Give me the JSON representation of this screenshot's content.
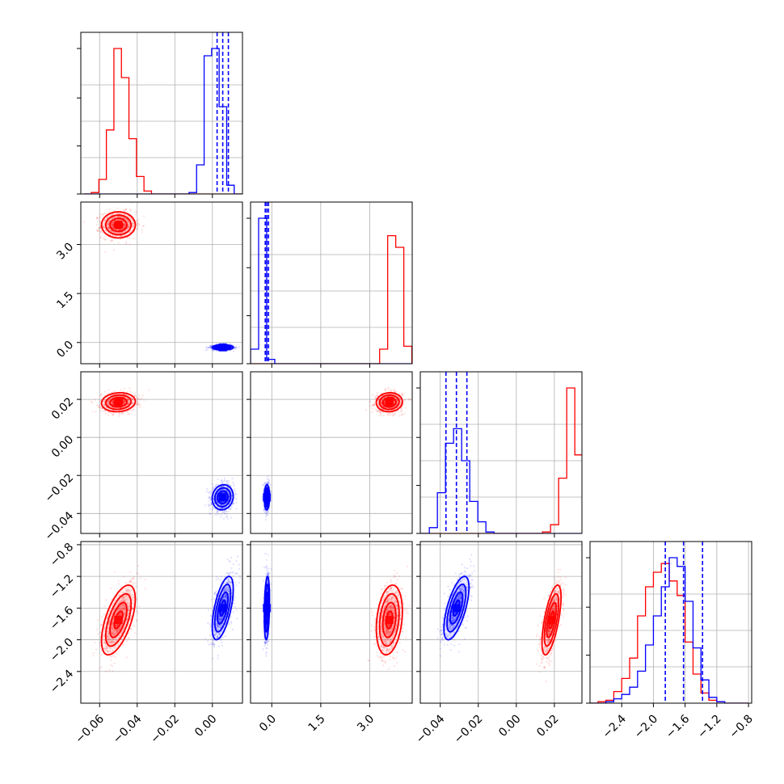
{
  "chart_data": {
    "type": "scatter",
    "subtype": "corner-plot",
    "grid": true,
    "series_colors": {
      "red": "#ff0000",
      "blue": "#0000ff"
    },
    "parameters": [
      {
        "range": [
          -0.07,
          0.016
        ],
        "ticks": [
          "−0.06",
          "−0.04",
          "−0.02",
          "0.00"
        ],
        "tick_values": [
          -0.06,
          -0.04,
          -0.02,
          0.0
        ]
      },
      {
        "range": [
          -0.65,
          4.3
        ],
        "ticks": [
          "0.0",
          "1.5",
          "3.0"
        ],
        "tick_values": [
          0.0,
          1.5,
          3.0
        ]
      },
      {
        "range": [
          -0.0505,
          0.0345
        ],
        "ticks": [
          "−0.04",
          "−0.02",
          "0.00",
          "0.02"
        ],
        "tick_values": [
          -0.04,
          -0.02,
          0.0,
          0.02
        ]
      },
      {
        "range": [
          -2.8,
          -0.76
        ],
        "ticks": [
          "−2.4",
          "−2.0",
          "−1.6",
          "−1.2",
          "−0.8"
        ],
        "tick_values": [
          -2.4,
          -2.0,
          -1.6,
          -1.2,
          -0.8
        ]
      }
    ],
    "series": [
      {
        "color": "red",
        "means": [
          -0.05,
          3.6,
          0.0185,
          -1.75
        ],
        "sds": [
          0.0045,
          0.2,
          0.0025,
          0.22
        ],
        "histograms": [
          {
            "edges_start": -0.0684,
            "bin_width": 0.004,
            "counts": [
              0,
              1,
              10,
              44,
              100,
              80,
              38,
              12,
              2,
              0,
              0,
              0,
              0,
              0,
              0,
              0,
              0,
              0,
              0,
              0,
              0
            ]
          },
          {
            "edges_start": -0.65,
            "bin_width": 0.247,
            "counts": [
              0,
              0,
              0,
              0,
              0,
              0,
              0,
              0,
              0,
              0,
              0,
              0,
              0,
              0,
              0,
              0,
              10,
              88,
              80,
              12
            ]
          },
          {
            "edges_start": -0.05,
            "bin_width": 0.00425,
            "counts": [
              0,
              0,
              0,
              0,
              0,
              0,
              0,
              0,
              0,
              0,
              0,
              0,
              0,
              0,
              0,
              1,
              6,
              38,
              100,
              54,
              3
            ]
          },
          {
            "edges_start": -2.8,
            "bin_width": 0.1,
            "counts": [
              0,
              1,
              2,
              8,
              17,
              31,
              60,
              80,
              90,
              96,
              84,
              74,
              42,
              20,
              7,
              2,
              1,
              0,
              0,
              0
            ]
          }
        ]
      },
      {
        "color": "blue",
        "means": [
          0.0055,
          -0.15,
          -0.0315,
          -1.6
        ],
        "sds": [
          0.0028,
          0.04,
          0.0033,
          0.2
        ],
        "quantiles": [
          [
            0.0025,
            0.0055,
            0.0085
          ],
          [
            -0.2,
            -0.15,
            -0.1
          ],
          [
            -0.037,
            -0.0315,
            -0.026
          ],
          [
            -1.85,
            -1.62,
            -1.38
          ]
        ],
        "histograms": [
          {
            "edges_start": -0.0684,
            "bin_width": 0.004,
            "counts": [
              0,
              0,
              0,
              0,
              0,
              0,
              0,
              0,
              0,
              0,
              0,
              0,
              0,
              0,
              1,
              20,
              95,
              100,
              60,
              6,
              0
            ]
          },
          {
            "edges_start": -0.65,
            "bin_width": 0.247,
            "counts": [
              10,
              100,
              3,
              0,
              0,
              0,
              0,
              0,
              0,
              0,
              0,
              0,
              0,
              0,
              0,
              0,
              0,
              0,
              0,
              0
            ]
          },
          {
            "edges_start": -0.05,
            "bin_width": 0.00425,
            "counts": [
              0,
              4,
              28,
              62,
              72,
              50,
              22,
              8,
              1,
              0,
              0,
              0,
              0,
              0,
              0,
              0,
              0,
              0,
              0,
              0,
              0
            ]
          },
          {
            "edges_start": -2.8,
            "bin_width": 0.1,
            "counts": [
              0,
              0,
              1,
              3,
              6,
              11,
              22,
              40,
              60,
              80,
              100,
              94,
              70,
              38,
              16,
              4,
              1,
              0,
              0,
              0
            ]
          }
        ]
      }
    ]
  }
}
